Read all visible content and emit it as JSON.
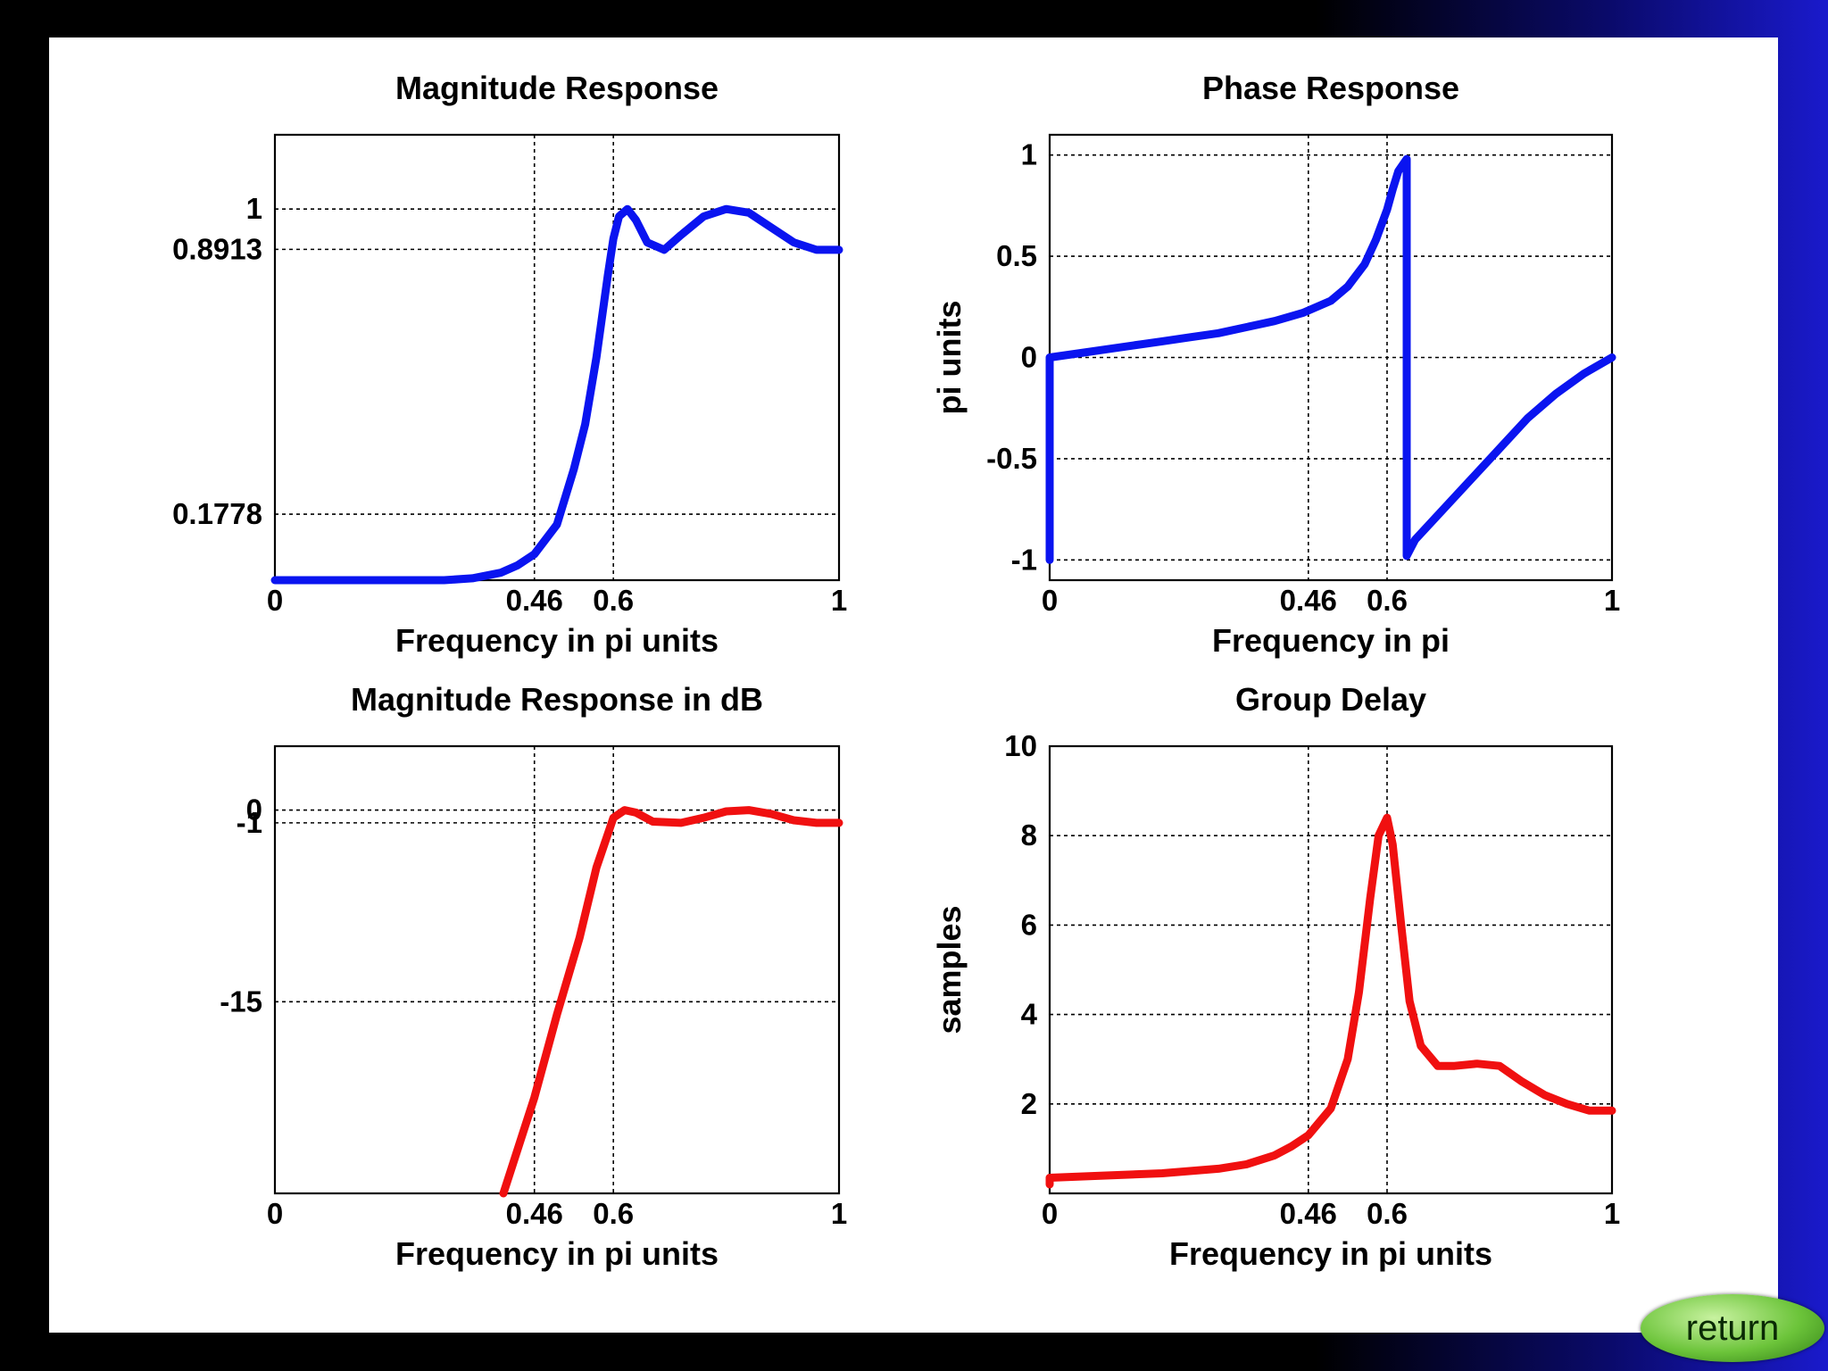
{
  "colors": {
    "magnitude": "#0a14f0",
    "db": "#f01010",
    "phase": "#0a14f0",
    "delay": "#f01010"
  },
  "return_label": "return",
  "chart_data": [
    {
      "id": "mag",
      "type": "line",
      "title": "Magnitude Response",
      "xlabel": "Frequency in pi units",
      "ylabel": "",
      "xlim": [
        0,
        1
      ],
      "ylim": [
        0,
        1.2
      ],
      "xticks": [
        {
          "v": 0,
          "label": "0"
        },
        {
          "v": 0.46,
          "label": "0.46"
        },
        {
          "v": 0.6,
          "label": "0.6"
        },
        {
          "v": 1,
          "label": "1"
        }
      ],
      "yticks": [
        {
          "v": 0.1778,
          "label": "0.1778"
        },
        {
          "v": 0.8913,
          "label": "0.8913"
        },
        {
          "v": 1,
          "label": "1"
        }
      ],
      "xgrid": [
        0.46,
        0.6
      ],
      "ygrid": [
        0.1778,
        0.8913,
        1
      ],
      "series": [
        {
          "color": "#0a14f0",
          "x": [
            0,
            0.1,
            0.2,
            0.3,
            0.35,
            0.4,
            0.43,
            0.46,
            0.5,
            0.53,
            0.55,
            0.57,
            0.59,
            0.6,
            0.61,
            0.625,
            0.64,
            0.66,
            0.69,
            0.72,
            0.76,
            0.8,
            0.84,
            0.88,
            0.92,
            0.96,
            1.0
          ],
          "y": [
            0,
            0,
            0,
            0,
            0.005,
            0.02,
            0.04,
            0.07,
            0.15,
            0.3,
            0.42,
            0.6,
            0.82,
            0.92,
            0.98,
            1.0,
            0.97,
            0.91,
            0.89,
            0.93,
            0.98,
            1.0,
            0.99,
            0.95,
            0.91,
            0.89,
            0.89
          ]
        }
      ]
    },
    {
      "id": "phase",
      "type": "line",
      "title": "Phase Response",
      "xlabel": "Frequency in pi",
      "ylabel": "pi units",
      "xlim": [
        0,
        1
      ],
      "ylim": [
        -1.1,
        1.1
      ],
      "xticks": [
        {
          "v": 0,
          "label": "0"
        },
        {
          "v": 0.46,
          "label": "0.46"
        },
        {
          "v": 0.6,
          "label": "0.6"
        },
        {
          "v": 1,
          "label": "1"
        }
      ],
      "yticks": [
        {
          "v": -1,
          "label": "-1"
        },
        {
          "v": -0.5,
          "label": "-0.5"
        },
        {
          "v": 0,
          "label": "0"
        },
        {
          "v": 0.5,
          "label": "0.5"
        },
        {
          "v": 1,
          "label": "1"
        }
      ],
      "xgrid": [
        0.46,
        0.6
      ],
      "ygrid": [
        -1,
        -0.5,
        0,
        0.5,
        1
      ],
      "series": [
        {
          "color": "#0a14f0",
          "x": [
            0,
            0,
            0.05,
            0.1,
            0.15,
            0.2,
            0.25,
            0.3,
            0.35,
            0.4,
            0.45,
            0.5,
            0.53,
            0.56,
            0.58,
            0.6,
            0.61,
            0.62,
            0.635,
            0.635,
            0.65,
            0.7,
            0.75,
            0.8,
            0.85,
            0.9,
            0.95,
            1.0
          ],
          "y": [
            -1,
            0,
            0.02,
            0.04,
            0.06,
            0.08,
            0.1,
            0.12,
            0.15,
            0.18,
            0.22,
            0.28,
            0.35,
            0.46,
            0.58,
            0.73,
            0.83,
            0.92,
            0.98,
            -0.98,
            -0.9,
            -0.75,
            -0.6,
            -0.45,
            -0.3,
            -0.18,
            -0.08,
            0
          ]
        }
      ]
    },
    {
      "id": "db",
      "type": "line",
      "title": "Magnitude Response in dB",
      "xlabel": "Frequency in pi units",
      "ylabel": "",
      "xlim": [
        0,
        1
      ],
      "ylim": [
        -30,
        5
      ],
      "xticks": [
        {
          "v": 0,
          "label": "0"
        },
        {
          "v": 0.46,
          "label": "0.46"
        },
        {
          "v": 0.6,
          "label": "0.6"
        },
        {
          "v": 1,
          "label": "1"
        }
      ],
      "yticks": [
        {
          "v": -15,
          "label": "-15"
        },
        {
          "v": -1,
          "label": "-1"
        },
        {
          "v": 0,
          "label": "0"
        }
      ],
      "xgrid": [
        0.46,
        0.6
      ],
      "ygrid": [
        -15,
        -1,
        0
      ],
      "series": [
        {
          "color": "#f01010",
          "x": [
            0.405,
            0.46,
            0.5,
            0.54,
            0.57,
            0.6,
            0.62,
            0.64,
            0.67,
            0.72,
            0.76,
            0.8,
            0.84,
            0.88,
            0.92,
            0.96,
            1.0
          ],
          "y": [
            -30,
            -22.5,
            -16,
            -10,
            -4.5,
            -0.6,
            0,
            -0.2,
            -0.9,
            -1.0,
            -0.6,
            -0.1,
            0,
            -0.3,
            -0.8,
            -1.0,
            -1.0
          ]
        }
      ]
    },
    {
      "id": "delay",
      "type": "line",
      "title": "Group Delay",
      "xlabel": "Frequency in pi units",
      "ylabel": "samples",
      "xlim": [
        0,
        1
      ],
      "ylim": [
        0,
        10
      ],
      "xticks": [
        {
          "v": 0,
          "label": "0"
        },
        {
          "v": 0.46,
          "label": "0.46"
        },
        {
          "v": 0.6,
          "label": "0.6"
        },
        {
          "v": 1,
          "label": "1"
        }
      ],
      "yticks": [
        {
          "v": 2,
          "label": "2"
        },
        {
          "v": 4,
          "label": "4"
        },
        {
          "v": 6,
          "label": "6"
        },
        {
          "v": 8,
          "label": "8"
        },
        {
          "v": 10,
          "label": "10"
        }
      ],
      "xgrid": [
        0.46,
        0.6
      ],
      "ygrid": [
        2,
        4,
        6,
        8
      ],
      "series": [
        {
          "color": "#f01010",
          "x": [
            0,
            0,
            0.1,
            0.2,
            0.3,
            0.35,
            0.4,
            0.43,
            0.46,
            0.5,
            0.53,
            0.55,
            0.57,
            0.585,
            0.6,
            0.61,
            0.625,
            0.64,
            0.66,
            0.69,
            0.72,
            0.76,
            0.8,
            0.84,
            0.88,
            0.92,
            0.96,
            1.0
          ],
          "y": [
            0.2,
            0.35,
            0.4,
            0.45,
            0.55,
            0.65,
            0.85,
            1.05,
            1.3,
            1.9,
            3.0,
            4.5,
            6.6,
            8.0,
            8.4,
            7.8,
            6.0,
            4.3,
            3.3,
            2.85,
            2.85,
            2.9,
            2.85,
            2.5,
            2.2,
            2.0,
            1.85,
            1.85
          ]
        }
      ]
    }
  ]
}
